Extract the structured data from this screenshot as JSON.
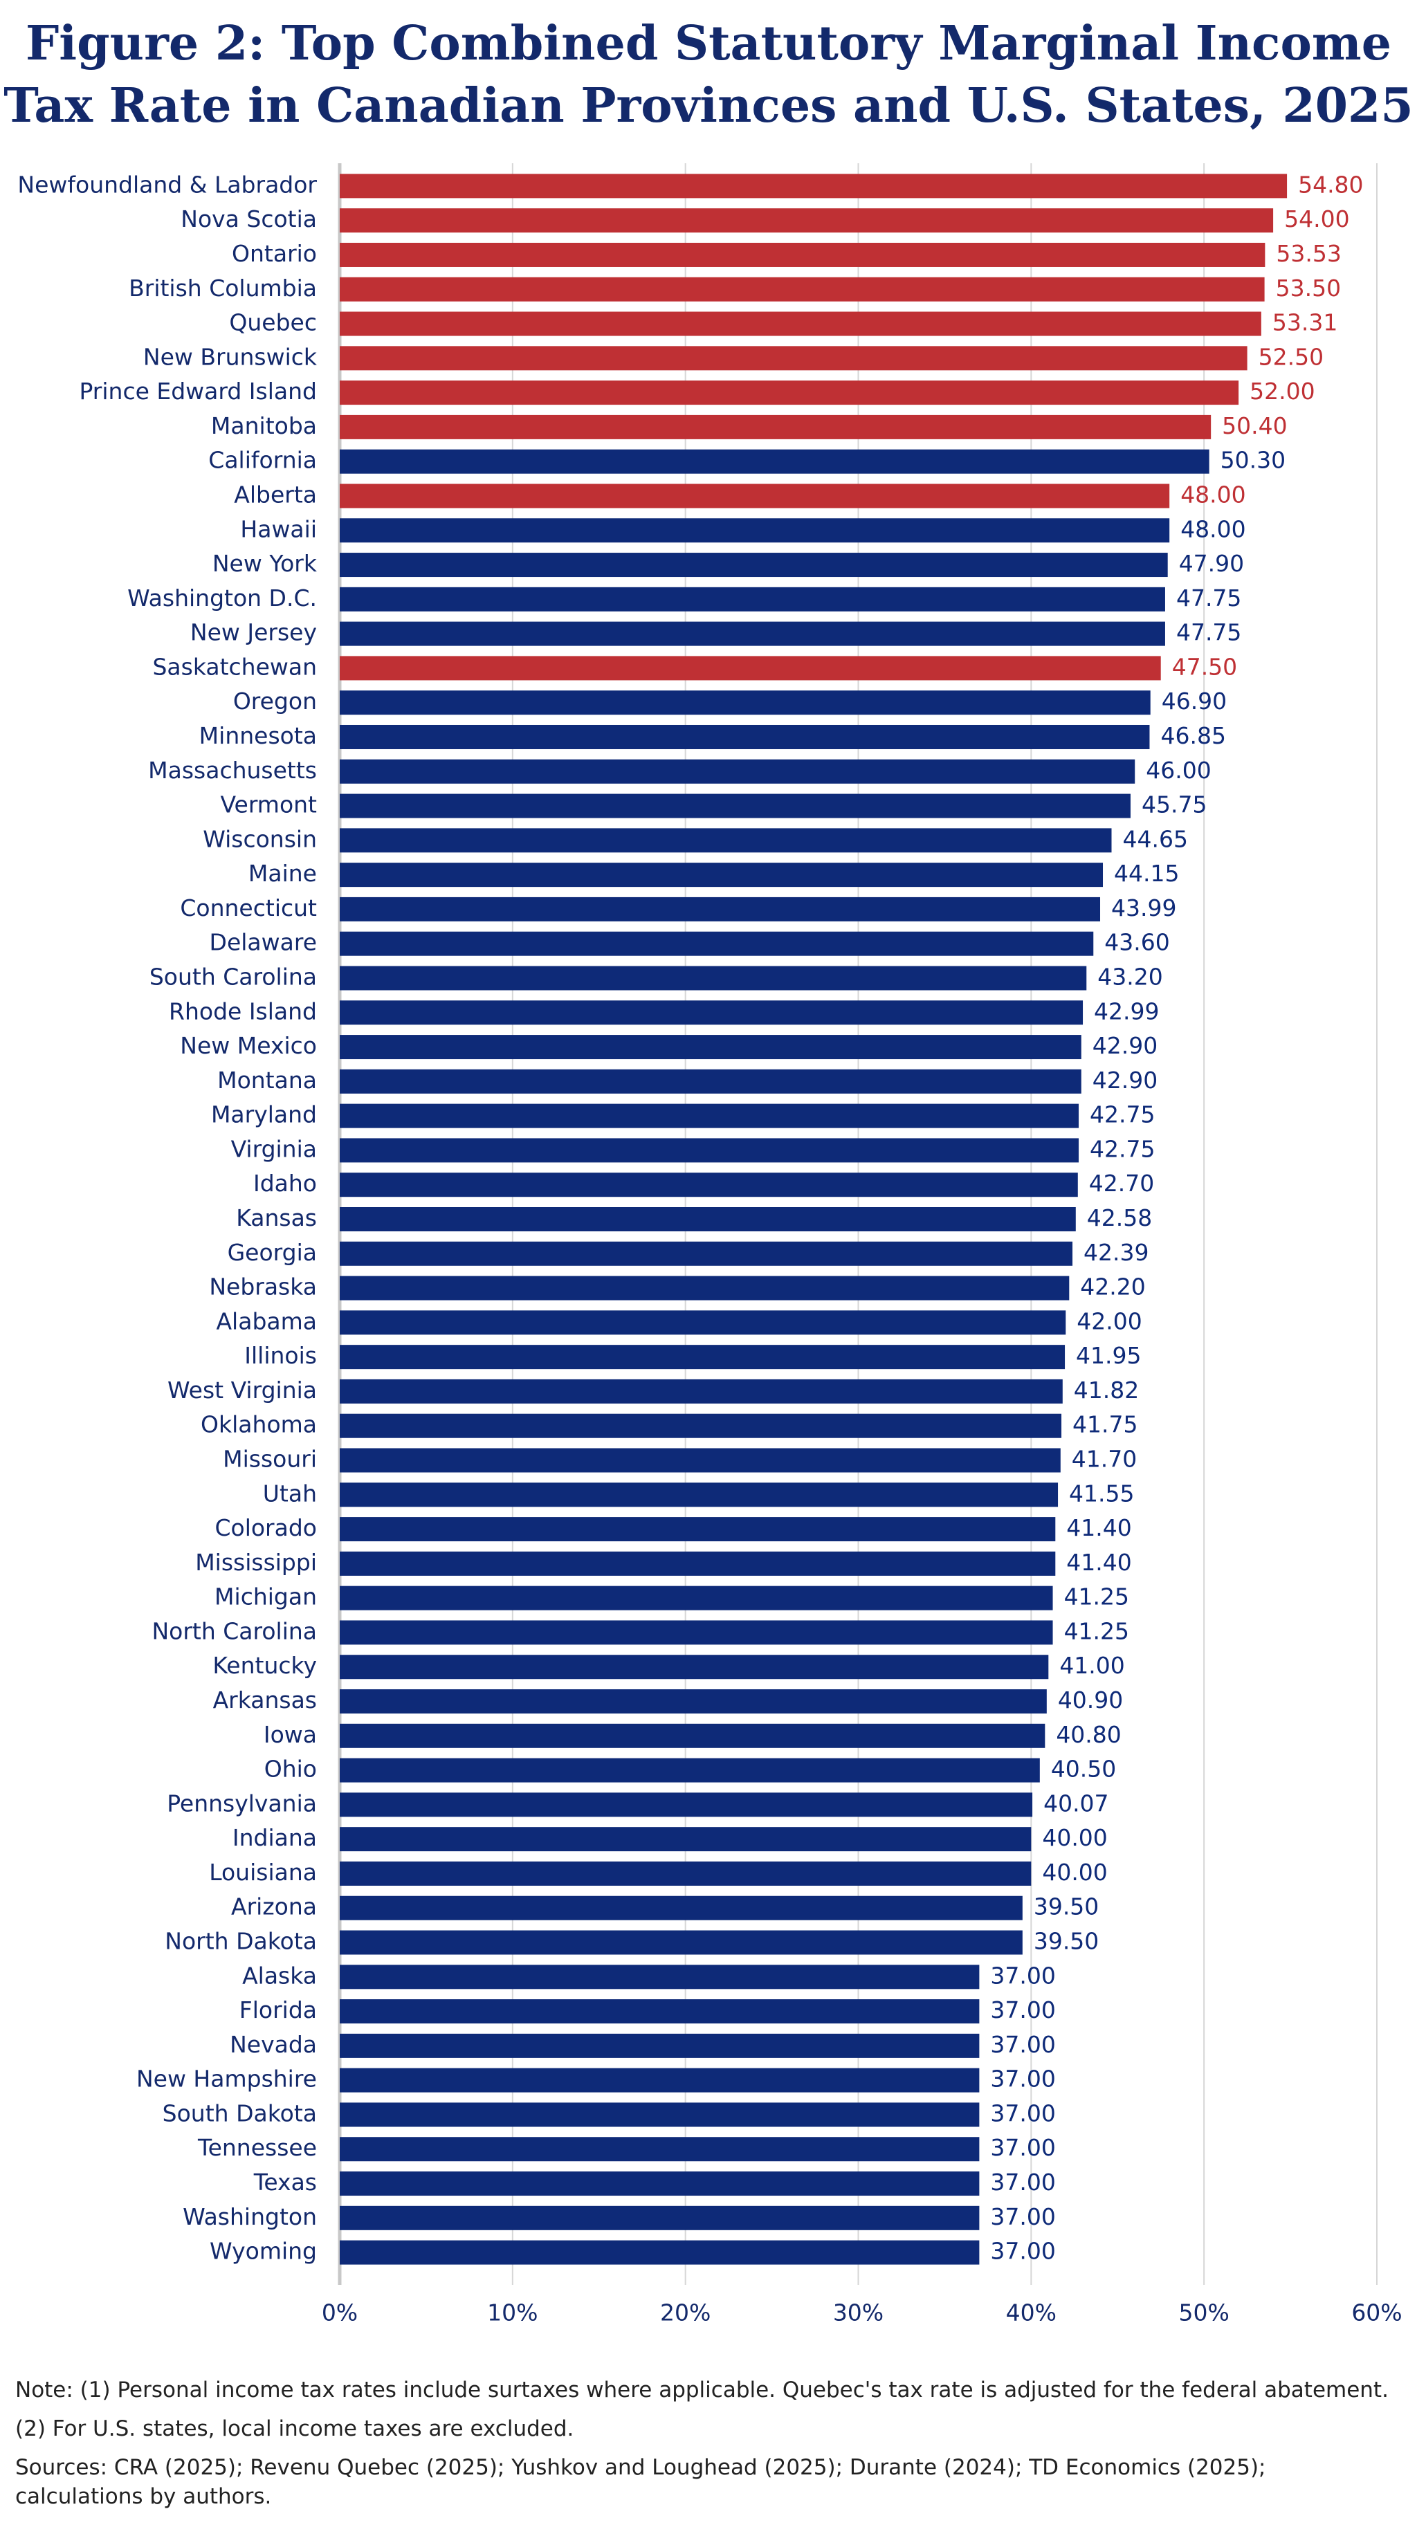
{
  "chart_data": {
    "type": "hbar",
    "title": "Figure 2: Top Combined Statutory Marginal Income Tax Rate in Canadian Provinces and U.S. States, 2025",
    "categories": [
      "Newfoundland & Labrador",
      "Nova Scotia",
      "Ontario",
      "British Columbia",
      "Quebec",
      "New Brunswick",
      "Prince Edward Island",
      "Manitoba",
      "California",
      "Alberta",
      "Hawaii",
      "New York",
      "Washington D.C.",
      "New Jersey",
      "Saskatchewan",
      "Oregon",
      "Minnesota",
      "Massachusetts",
      "Vermont",
      "Wisconsin",
      "Maine",
      "Connecticut",
      "Delaware",
      "South Carolina",
      "Rhode Island",
      "New Mexico",
      "Montana",
      "Maryland",
      "Virginia",
      "Idaho",
      "Kansas",
      "Georgia",
      "Nebraska",
      "Alabama",
      "Illinois",
      "West Virginia",
      "Oklahoma",
      "Missouri",
      "Utah",
      "Colorado",
      "Mississippi",
      "Michigan",
      "North Carolina",
      "Kentucky",
      "Arkansas",
      "Iowa",
      "Ohio",
      "Pennsylvania",
      "Indiana",
      "Louisiana",
      "Arizona",
      "North Dakota",
      "Alaska",
      "Florida",
      "Nevada",
      "New Hampshire",
      "South Dakota",
      "Tennessee",
      "Texas",
      "Washington",
      "Wyoming"
    ],
    "values": [
      54.8,
      54,
      53.53,
      53.5,
      53.31,
      52.5,
      52,
      50.4,
      50.3,
      48,
      48,
      47.9,
      47.75,
      47.75,
      47.5,
      46.9,
      46.85,
      46,
      45.75,
      44.65,
      44.15,
      43.99,
      43.6,
      43.2,
      42.99,
      42.9,
      42.9,
      42.75,
      42.75,
      42.7,
      42.58,
      42.39,
      42.2,
      42,
      41.95,
      41.82,
      41.75,
      41.7,
      41.55,
      41.4,
      41.4,
      41.25,
      41.25,
      41,
      40.9,
      40.8,
      40.5,
      40.07,
      40,
      40,
      39.5,
      39.5,
      37,
      37,
      37,
      37,
      37,
      37,
      37,
      37,
      37
    ],
    "value_labels": [
      "54.80",
      "54.00",
      "53.53",
      "53.50",
      "53.31",
      "52.50",
      "52.00",
      "50.40",
      "50.30",
      "48.00",
      "48.00",
      "47.90",
      "47.75",
      "47.75",
      "47.50",
      "46.90",
      "46.85",
      "46.00",
      "45.75",
      "44.65",
      "44.15",
      "43.99",
      "43.60",
      "43.20",
      "42.99",
      "42.90",
      "42.90",
      "42.75",
      "42.75",
      "42.70",
      "42.58",
      "42.39",
      "42.20",
      "42.00",
      "41.95",
      "41.82",
      "41.75",
      "41.70",
      "41.55",
      "41.40",
      "41.40",
      "41.25",
      "41.25",
      "41.00",
      "40.90",
      "40.80",
      "40.50",
      "40.07",
      "40.00",
      "40.00",
      "39.50",
      "39.50",
      "37.00",
      "37.00",
      "37.00",
      "37.00",
      "37.00",
      "37.00",
      "37.00",
      "37.00",
      "37.00"
    ],
    "colors": [
      "#bf3034",
      "#bf3034",
      "#bf3034",
      "#bf3034",
      "#bf3034",
      "#bf3034",
      "#bf3034",
      "#bf3034",
      "#0e2a78",
      "#bf3034",
      "#0e2a78",
      "#0e2a78",
      "#0e2a78",
      "#0e2a78",
      "#bf3034",
      "#0e2a78",
      "#0e2a78",
      "#0e2a78",
      "#0e2a78",
      "#0e2a78",
      "#0e2a78",
      "#0e2a78",
      "#0e2a78",
      "#0e2a78",
      "#0e2a78",
      "#0e2a78",
      "#0e2a78",
      "#0e2a78",
      "#0e2a78",
      "#0e2a78",
      "#0e2a78",
      "#0e2a78",
      "#0e2a78",
      "#0e2a78",
      "#0e2a78",
      "#0e2a78",
      "#0e2a78",
      "#0e2a78",
      "#0e2a78",
      "#0e2a78",
      "#0e2a78",
      "#0e2a78",
      "#0e2a78",
      "#0e2a78",
      "#0e2a78",
      "#0e2a78",
      "#0e2a78",
      "#0e2a78",
      "#0e2a78",
      "#0e2a78",
      "#0e2a78",
      "#0e2a78",
      "#0e2a78",
      "#0e2a78",
      "#0e2a78",
      "#0e2a78",
      "#0e2a78",
      "#0e2a78",
      "#0e2a78",
      "#0e2a78",
      "#0e2a78"
    ],
    "xlim": [
      0,
      60
    ],
    "xticks": [
      {
        "value": 0,
        "label": "0%"
      },
      {
        "value": 10,
        "label": "10%"
      },
      {
        "value": 20,
        "label": "20%"
      },
      {
        "value": 30,
        "label": "30%"
      },
      {
        "value": 40,
        "label": "40%"
      },
      {
        "value": 50,
        "label": "50%"
      },
      {
        "value": 60,
        "label": "60%"
      }
    ],
    "grid": true
  },
  "notes": [
    "Note: (1) Personal income tax rates include surtaxes where applicable. Quebec's tax rate is adjusted for the federal abatement.",
    "(2) For U.S. states, local income taxes are excluded.",
    "Sources: CRA (2025); Revenu Quebec (2025); Yushkov and Loughead (2025); Durante (2024); TD Economics (2025); calculations by authors."
  ]
}
